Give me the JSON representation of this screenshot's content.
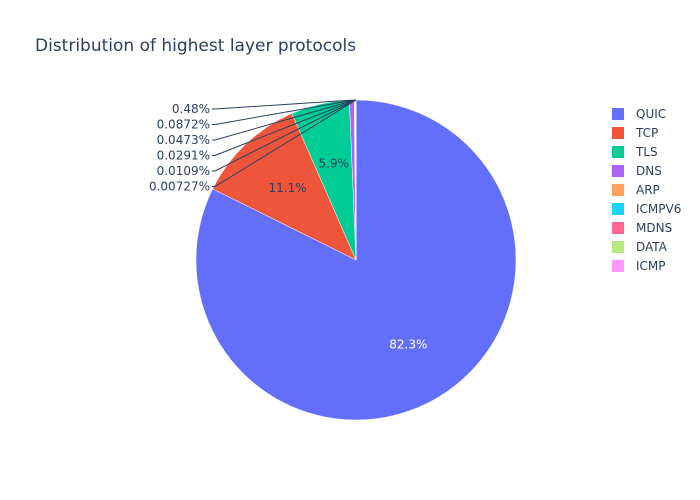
{
  "chart_data": {
    "type": "pie",
    "title": "Distribution of highest layer protocols",
    "direction": "clockwise",
    "legend_position": "right",
    "slices": [
      {
        "label": "QUIC",
        "value": 82.3,
        "display": "82.3%",
        "color": "#636efa"
      },
      {
        "label": "TCP",
        "value": 11.1,
        "display": "11.1%",
        "color": "#ef553b"
      },
      {
        "label": "TLS",
        "value": 5.9,
        "display": "5.9%",
        "color": "#00cc96"
      },
      {
        "label": "DNS",
        "value": 0.48,
        "display": "0.48%",
        "color": "#ab63fa"
      },
      {
        "label": "ARP",
        "value": 0.0872,
        "display": "0.0872%",
        "color": "#ffa15a"
      },
      {
        "label": "ICMPV6",
        "value": 0.0473,
        "display": "0.0473%",
        "color": "#19d3f3"
      },
      {
        "label": "MDNS",
        "value": 0.0291,
        "display": "0.0291%",
        "color": "#ff6692"
      },
      {
        "label": "DATA",
        "value": 0.0109,
        "display": "0.0109%",
        "color": "#b6e880"
      },
      {
        "label": "ICMP",
        "value": 0.00727,
        "display": "0.00727%",
        "color": "#ff97ff"
      }
    ]
  }
}
